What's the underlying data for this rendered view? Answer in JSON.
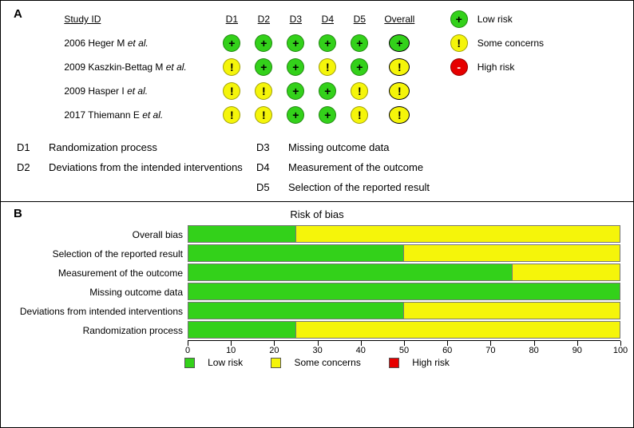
{
  "colors": {
    "low": "#33d11a",
    "some": "#f5f50a",
    "high": "#e60000",
    "border": "#000000",
    "background": "#ffffff"
  },
  "panelA": {
    "label": "A",
    "headers": {
      "study": "Study ID",
      "d1": "D1",
      "d2": "D2",
      "d3": "D3",
      "d4": "D4",
      "d5": "D5",
      "overall": "Overall"
    },
    "studies": [
      {
        "name_pre": "2006 Heger M ",
        "name_it": "et al.",
        "d": [
          "low",
          "low",
          "low",
          "low",
          "low"
        ],
        "overall": "low"
      },
      {
        "name_pre": "2009 Kaszkin-Bettag M ",
        "name_it": "et al.",
        "d": [
          "some",
          "low",
          "low",
          "some",
          "low"
        ],
        "overall": "some"
      },
      {
        "name_pre": "2009 Hasper I ",
        "name_it": "et al.",
        "d": [
          "some",
          "some",
          "low",
          "low",
          "some"
        ],
        "overall": "some"
      },
      {
        "name_pre": "2017 Thiemann E ",
        "name_it": "et al.",
        "d": [
          "some",
          "some",
          "low",
          "low",
          "some"
        ],
        "overall": "some"
      }
    ],
    "legend": [
      {
        "level": "low",
        "symbol": "+",
        "label": "Low risk"
      },
      {
        "level": "some",
        "symbol": "!",
        "label": "Some concerns"
      },
      {
        "level": "high",
        "symbol": "-",
        "label": "High risk"
      }
    ],
    "domains": [
      {
        "key": "D1",
        "text": "Randomization process"
      },
      {
        "key": "D2",
        "text": "Deviations from the intended interventions"
      },
      {
        "key": "D3",
        "text": "Missing outcome data"
      },
      {
        "key": "D4",
        "text": "Measurement of the outcome"
      },
      {
        "key": "D5",
        "text": "Selection of the reported result"
      }
    ]
  },
  "panelB": {
    "label": "B",
    "title": "Risk of bias",
    "categories": [
      {
        "label": "Overall bias",
        "low": 25,
        "some": 75,
        "high": 0
      },
      {
        "label": "Selection of the reported result",
        "low": 50,
        "some": 50,
        "high": 0
      },
      {
        "label": "Measurement of the outcome",
        "low": 75,
        "some": 25,
        "high": 0
      },
      {
        "label": "Missing outcome data",
        "low": 100,
        "some": 0,
        "high": 0
      },
      {
        "label": "Deviations from intended interventions",
        "low": 50,
        "some": 50,
        "high": 0
      },
      {
        "label": "Randomization process",
        "low": 25,
        "some": 75,
        "high": 0
      }
    ],
    "xaxis": {
      "min": 0,
      "max": 100,
      "step": 10
    },
    "legend": {
      "low": "Low risk",
      "some": "Some concerns",
      "high": "High risk"
    }
  },
  "symbols": {
    "low": "+",
    "some": "!",
    "high": "-"
  }
}
